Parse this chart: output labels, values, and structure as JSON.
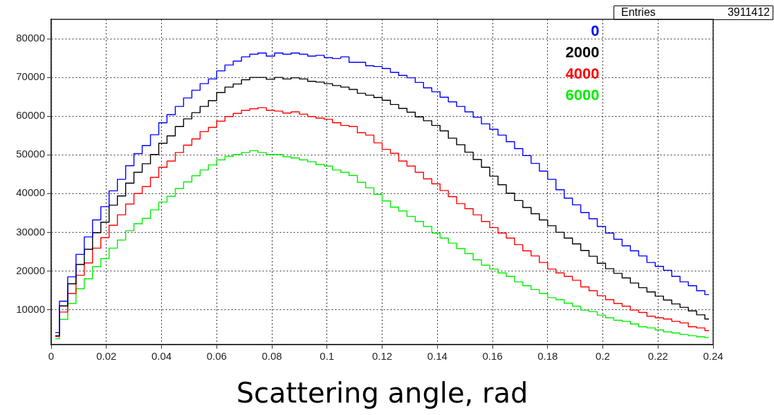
{
  "chart_data": {
    "type": "step",
    "xlabel": "Scattering angle, rad",
    "annotations": [
      "Entries 3911412"
    ],
    "x": [
      0.0015,
      0.0045,
      0.0075,
      0.0105,
      0.0135,
      0.0165,
      0.0195,
      0.0225,
      0.0255,
      0.0285,
      0.0315,
      0.0345,
      0.0375,
      0.0405,
      0.0435,
      0.0465,
      0.0495,
      0.0525,
      0.0555,
      0.0585,
      0.0615,
      0.0645,
      0.0675,
      0.0705,
      0.0735,
      0.0765,
      0.0795,
      0.0825,
      0.0855,
      0.0885,
      0.0915,
      0.0945,
      0.0975,
      0.1005,
      0.1035,
      0.1065,
      0.1095,
      0.1125,
      0.1155,
      0.1185,
      0.1215,
      0.1245,
      0.1275,
      0.1305,
      0.1335,
      0.1365,
      0.1395,
      0.1425,
      0.1455,
      0.1485,
      0.1515,
      0.1545,
      0.1575,
      0.1605,
      0.1635,
      0.1665,
      0.1695,
      0.1725,
      0.1755,
      0.1785,
      0.1815,
      0.1845,
      0.1875,
      0.1905,
      0.1935,
      0.1965,
      0.1995,
      0.2025,
      0.2055,
      0.2085,
      0.2115,
      0.2145,
      0.2175,
      0.2205,
      0.2235,
      0.2265,
      0.2295,
      0.2325,
      0.2355,
      0.2385
    ],
    "series": [
      {
        "name": "0",
        "color": "#0000ff",
        "values": [
          4100,
          12200,
          18500,
          24300,
          28800,
          33200,
          36600,
          40700,
          43700,
          47200,
          50300,
          52400,
          55200,
          58300,
          60400,
          62500,
          64700,
          66700,
          68400,
          69600,
          71700,
          73200,
          74200,
          75300,
          76000,
          76300,
          75500,
          76300,
          76000,
          76300,
          76000,
          75500,
          75700,
          75100,
          74900,
          75300,
          73900,
          73900,
          73000,
          72800,
          72300,
          71300,
          70500,
          69900,
          68700,
          67300,
          66300,
          64900,
          63700,
          62500,
          61100,
          59700,
          58000,
          56600,
          55100,
          53400,
          51600,
          49800,
          47800,
          45800,
          43700,
          41000,
          38800,
          37100,
          35100,
          33500,
          31500,
          29800,
          28200,
          26500,
          25200,
          23900,
          22200,
          21200,
          20200,
          18600,
          17200,
          16200,
          14900,
          13900
        ]
      },
      {
        "name": "2000",
        "color": "#000000",
        "values": [
          3300,
          11000,
          16700,
          21700,
          25600,
          29900,
          32600,
          37000,
          39400,
          42700,
          45500,
          47700,
          50100,
          53000,
          54900,
          57300,
          59300,
          60900,
          62500,
          64000,
          66100,
          67500,
          68300,
          69400,
          70000,
          70000,
          69500,
          70000,
          69600,
          69900,
          69600,
          69000,
          68800,
          68400,
          67900,
          67500,
          66900,
          65900,
          65400,
          64800,
          64100,
          63000,
          62000,
          61000,
          59800,
          58800,
          57600,
          56200,
          54300,
          52600,
          50700,
          48800,
          46800,
          44500,
          42300,
          40100,
          38200,
          36400,
          34800,
          33200,
          31700,
          30000,
          28500,
          27000,
          25300,
          23800,
          22000,
          20600,
          19400,
          18200,
          16900,
          15700,
          14600,
          13500,
          12500,
          11500,
          10600,
          9700,
          8700,
          7600
        ]
      },
      {
        "name": "4000",
        "color": "#ff0000",
        "values": [
          3100,
          9400,
          14200,
          18900,
          22100,
          25900,
          28600,
          31800,
          34500,
          37300,
          40000,
          41800,
          44200,
          46800,
          48400,
          50600,
          52500,
          54100,
          56000,
          57100,
          58700,
          59900,
          60700,
          61500,
          61900,
          62200,
          61500,
          61300,
          60800,
          61100,
          60500,
          59900,
          59500,
          59200,
          58300,
          57600,
          57300,
          55700,
          55100,
          53100,
          51400,
          50400,
          48400,
          47100,
          45500,
          43800,
          42500,
          40800,
          39200,
          37400,
          36100,
          34500,
          32800,
          31200,
          29800,
          28500,
          26800,
          25200,
          23900,
          22200,
          20500,
          19500,
          18600,
          17600,
          15900,
          14900,
          13600,
          12600,
          11600,
          10900,
          9900,
          9300,
          8300,
          7900,
          7600,
          7000,
          6600,
          5600,
          5300,
          4600
        ]
      },
      {
        "name": "6000",
        "color": "#00ee00",
        "values": [
          2500,
          7500,
          11600,
          15400,
          18000,
          21100,
          23200,
          25900,
          28000,
          30400,
          32200,
          33600,
          35800,
          37800,
          39300,
          41300,
          43000,
          44600,
          46100,
          47400,
          48700,
          49600,
          50100,
          50600,
          51100,
          50600,
          50100,
          50100,
          49500,
          49200,
          48700,
          48200,
          47500,
          47100,
          46100,
          45500,
          44700,
          42900,
          41500,
          39800,
          38100,
          36500,
          35500,
          34100,
          32800,
          31500,
          29800,
          28500,
          27200,
          25800,
          24500,
          22900,
          21500,
          20500,
          19500,
          18600,
          17200,
          16200,
          15200,
          14200,
          13100,
          12600,
          11700,
          10900,
          9900,
          9500,
          8600,
          7900,
          7300,
          7000,
          6300,
          5600,
          5300,
          4800,
          4300,
          4000,
          3600,
          3300,
          3000,
          2800
        ]
      }
    ],
    "xlim": [
      0,
      0.24
    ],
    "xticks": [
      0,
      0.02,
      0.04,
      0.06,
      0.08,
      0.1,
      0.12,
      0.14,
      0.16,
      0.18,
      0.2,
      0.22,
      0.24
    ],
    "ylim": [
      1000,
      85000
    ],
    "yticks": [
      10000,
      20000,
      30000,
      40000,
      50000,
      60000,
      70000,
      80000
    ],
    "grid": true,
    "legend": "top right"
  }
}
